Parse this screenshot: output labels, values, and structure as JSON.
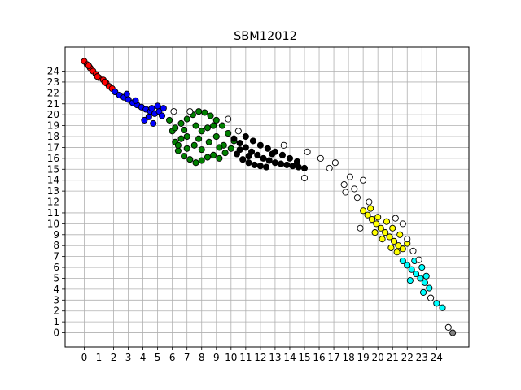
{
  "chart_data": {
    "type": "scatter",
    "title": "SBM12012",
    "xlabel": "",
    "ylabel": "",
    "xlim": [
      -1.3,
      26.2
    ],
    "ylim": [
      -1.3,
      26.2
    ],
    "grid": true,
    "x_ticks": [
      0,
      1,
      2,
      3,
      4,
      5,
      6,
      7,
      8,
      9,
      10,
      11,
      12,
      13,
      14,
      15,
      16,
      17,
      18,
      19,
      20,
      21,
      22,
      23,
      24
    ],
    "y_ticks": [
      0,
      1,
      2,
      3,
      4,
      5,
      6,
      7,
      8,
      9,
      10,
      11,
      12,
      13,
      14,
      15,
      16,
      17,
      18,
      19,
      20,
      21,
      22,
      23,
      24
    ],
    "clusters": [
      {
        "color": "#ff0000",
        "points": [
          [
            0.0,
            24.9
          ],
          [
            0.2,
            24.6
          ],
          [
            0.4,
            24.3
          ],
          [
            0.6,
            24.0
          ],
          [
            0.8,
            23.7
          ],
          [
            1.0,
            23.4
          ],
          [
            1.3,
            23.2
          ],
          [
            1.5,
            22.9
          ],
          [
            1.7,
            22.6
          ],
          [
            1.9,
            22.4
          ],
          [
            0.3,
            24.5
          ],
          [
            0.9,
            23.5
          ],
          [
            1.4,
            23.0
          ]
        ]
      },
      {
        "color": "#0000ff",
        "points": [
          [
            2.1,
            22.1
          ],
          [
            2.4,
            21.8
          ],
          [
            2.7,
            21.6
          ],
          [
            3.0,
            21.4
          ],
          [
            3.3,
            21.1
          ],
          [
            3.6,
            20.9
          ],
          [
            3.9,
            20.7
          ],
          [
            4.2,
            20.5
          ],
          [
            4.5,
            20.3
          ],
          [
            4.8,
            20.1
          ],
          [
            5.1,
            20.3
          ],
          [
            5.4,
            20.6
          ],
          [
            4.4,
            19.8
          ],
          [
            4.1,
            19.5
          ],
          [
            4.7,
            19.2
          ],
          [
            5.0,
            20.8
          ],
          [
            2.9,
            21.9
          ],
          [
            3.5,
            21.3
          ],
          [
            4.6,
            20.6
          ],
          [
            5.3,
            19.9
          ]
        ]
      },
      {
        "color": "#008000",
        "points": [
          [
            5.8,
            19.5
          ],
          [
            6.0,
            18.5
          ],
          [
            6.2,
            17.5
          ],
          [
            6.4,
            16.7
          ],
          [
            6.8,
            16.2
          ],
          [
            7.2,
            15.9
          ],
          [
            7.6,
            15.6
          ],
          [
            8.0,
            15.8
          ],
          [
            8.4,
            16.1
          ],
          [
            8.8,
            16.3
          ],
          [
            9.2,
            16.0
          ],
          [
            9.6,
            16.5
          ],
          [
            10.0,
            16.9
          ],
          [
            10.2,
            17.6
          ],
          [
            9.8,
            18.3
          ],
          [
            9.4,
            19.0
          ],
          [
            9.0,
            19.5
          ],
          [
            8.6,
            19.9
          ],
          [
            8.2,
            20.2
          ],
          [
            7.8,
            20.3
          ],
          [
            7.4,
            20.0
          ],
          [
            7.0,
            19.6
          ],
          [
            6.6,
            19.2
          ],
          [
            6.2,
            18.8
          ],
          [
            7.0,
            18.0
          ],
          [
            7.5,
            17.2
          ],
          [
            8.0,
            18.5
          ],
          [
            8.5,
            17.5
          ],
          [
            9.0,
            18.0
          ],
          [
            8.0,
            16.8
          ],
          [
            7.0,
            16.9
          ],
          [
            6.6,
            17.8
          ],
          [
            9.5,
            17.2
          ],
          [
            8.8,
            19.0
          ],
          [
            7.6,
            19.0
          ],
          [
            6.8,
            18.6
          ],
          [
            7.8,
            17.8
          ],
          [
            8.4,
            18.8
          ],
          [
            9.2,
            17.0
          ],
          [
            6.4,
            17.2
          ]
        ]
      },
      {
        "color": "#000000",
        "points": [
          [
            10.2,
            17.8
          ],
          [
            10.6,
            17.4
          ],
          [
            11.0,
            17.0
          ],
          [
            11.4,
            16.6
          ],
          [
            11.8,
            16.3
          ],
          [
            12.2,
            16.0
          ],
          [
            12.6,
            15.8
          ],
          [
            13.0,
            15.6
          ],
          [
            13.4,
            15.5
          ],
          [
            13.8,
            15.4
          ],
          [
            14.2,
            15.3
          ],
          [
            14.6,
            15.2
          ],
          [
            15.0,
            15.1
          ],
          [
            10.4,
            16.4
          ],
          [
            10.8,
            15.9
          ],
          [
            11.2,
            15.6
          ],
          [
            11.6,
            15.4
          ],
          [
            12.0,
            15.3
          ],
          [
            12.4,
            15.2
          ],
          [
            11.0,
            18.0
          ],
          [
            11.5,
            17.6
          ],
          [
            12.0,
            17.2
          ],
          [
            12.5,
            16.9
          ],
          [
            13.0,
            16.6
          ],
          [
            13.5,
            16.3
          ],
          [
            14.0,
            16.0
          ],
          [
            14.5,
            15.7
          ],
          [
            10.6,
            16.8
          ],
          [
            11.2,
            16.2
          ],
          [
            12.8,
            16.4
          ]
        ]
      },
      {
        "color": "#ffff00",
        "points": [
          [
            19.0,
            11.2
          ],
          [
            19.3,
            10.8
          ],
          [
            19.6,
            10.4
          ],
          [
            19.9,
            10.0
          ],
          [
            20.2,
            9.6
          ],
          [
            20.5,
            9.2
          ],
          [
            20.8,
            8.8
          ],
          [
            21.1,
            8.4
          ],
          [
            21.4,
            8.0
          ],
          [
            21.7,
            7.7
          ],
          [
            19.5,
            11.4
          ],
          [
            20.0,
            10.6
          ],
          [
            20.6,
            10.2
          ],
          [
            21.0,
            9.6
          ],
          [
            21.5,
            9.0
          ],
          [
            19.8,
            9.2
          ],
          [
            20.3,
            8.6
          ],
          [
            20.9,
            7.8
          ],
          [
            21.3,
            7.4
          ],
          [
            22.0,
            8.2
          ]
        ]
      },
      {
        "color": "#00ffff",
        "points": [
          [
            21.7,
            6.6
          ],
          [
            22.0,
            6.2
          ],
          [
            22.3,
            5.8
          ],
          [
            22.6,
            5.4
          ],
          [
            22.9,
            5.0
          ],
          [
            23.2,
            4.6
          ],
          [
            23.5,
            4.1
          ],
          [
            23.1,
            3.7
          ],
          [
            23.6,
            3.2
          ],
          [
            24.0,
            2.7
          ],
          [
            24.4,
            2.3
          ],
          [
            22.5,
            6.6
          ],
          [
            23.0,
            6.0
          ],
          [
            23.3,
            5.2
          ],
          [
            22.2,
            4.8
          ]
        ]
      },
      {
        "color": "#808080",
        "points": [
          [
            25.1,
            0.0
          ]
        ]
      },
      {
        "color": "#ffffff",
        "points": [
          [
            6.1,
            20.3
          ],
          [
            7.2,
            20.3
          ],
          [
            9.8,
            19.6
          ],
          [
            10.5,
            18.5
          ],
          [
            13.6,
            17.2
          ],
          [
            15.2,
            16.6
          ],
          [
            16.1,
            16.0
          ],
          [
            16.7,
            15.1
          ],
          [
            17.1,
            15.6
          ],
          [
            15.0,
            14.2
          ],
          [
            17.7,
            13.6
          ],
          [
            18.1,
            14.3
          ],
          [
            18.4,
            13.2
          ],
          [
            19.0,
            14.0
          ],
          [
            18.6,
            12.4
          ],
          [
            19.4,
            12.0
          ],
          [
            17.8,
            12.9
          ],
          [
            18.8,
            9.6
          ],
          [
            21.7,
            10.0
          ],
          [
            21.2,
            10.5
          ],
          [
            22.0,
            8.6
          ],
          [
            22.4,
            7.5
          ],
          [
            22.8,
            6.7
          ],
          [
            23.6,
            3.2
          ],
          [
            24.8,
            0.5
          ]
        ]
      }
    ]
  }
}
